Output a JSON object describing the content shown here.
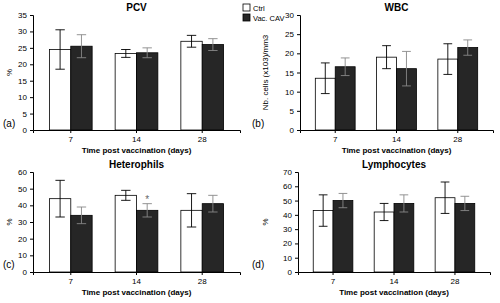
{
  "chart_data": [
    {
      "type": "bar",
      "title": "PCV",
      "panel_label": "(a)",
      "x_label": "Time post vaccination (days)",
      "y_label": "%",
      "categories": [
        "7",
        "14",
        "28"
      ],
      "series": [
        {
          "name": "Ctrl",
          "color": "#ffffff",
          "values": [
            24.5,
            23.3,
            27
          ],
          "errors": [
            6,
            1.2,
            1.8
          ]
        },
        {
          "name": "Vac. CAV",
          "color": "#262626",
          "values": [
            25.5,
            23.5,
            26
          ],
          "errors": [
            3.5,
            1.5,
            1.8
          ]
        }
      ],
      "ylim": [
        0,
        35
      ],
      "yticks": [
        0,
        5,
        10,
        15,
        20,
        25,
        30,
        35
      ],
      "legend": "upper right"
    },
    {
      "type": "bar",
      "title": "WBC",
      "panel_label": "(b)",
      "x_label": "Time post vaccination (days)",
      "y_label": "Nb. cells (x103)/mm3",
      "categories": [
        "7",
        "14",
        "28"
      ],
      "series": [
        {
          "color": "#ffffff",
          "values": [
            13.5,
            19,
            18.5
          ],
          "errors": [
            4,
            3,
            4
          ]
        },
        {
          "color": "#262626",
          "values": [
            16.5,
            16,
            21.5
          ],
          "errors": [
            2.3,
            4.5,
            2
          ]
        }
      ],
      "ylim": [
        0,
        30
      ],
      "yticks": [
        0,
        5,
        10,
        15,
        20,
        25,
        30
      ]
    },
    {
      "type": "bar",
      "title": "Heterophils",
      "panel_label": "(c)",
      "x_label": "Time post vaccination (days)",
      "y_label": "%",
      "categories": [
        "7",
        "14",
        "28"
      ],
      "series": [
        {
          "color": "#ffffff",
          "values": [
            44,
            46,
            37
          ],
          "errors": [
            11,
            3,
            10
          ]
        },
        {
          "color": "#262626",
          "values": [
            34,
            37,
            41
          ],
          "errors": [
            5,
            4,
            5
          ]
        }
      ],
      "annotations": [
        {
          "text": "*",
          "category": 1,
          "series": 1
        }
      ],
      "ylim": [
        0,
        60
      ],
      "yticks": [
        0,
        10,
        20,
        30,
        40,
        50,
        60
      ]
    },
    {
      "type": "bar",
      "title": "Lymphocytes",
      "panel_label": "(d)",
      "x_label": "Time post vaccination (days)",
      "y_label": "%",
      "categories": [
        "7",
        "14",
        "28"
      ],
      "series": [
        {
          "color": "#ffffff",
          "values": [
            43,
            42,
            52
          ],
          "errors": [
            11,
            6,
            11
          ]
        },
        {
          "color": "#262626",
          "values": [
            50,
            48,
            48
          ],
          "errors": [
            5,
            6,
            5
          ]
        }
      ],
      "ylim": [
        0,
        70
      ],
      "yticks": [
        0,
        10,
        20,
        30,
        40,
        50,
        60,
        70
      ]
    }
  ]
}
